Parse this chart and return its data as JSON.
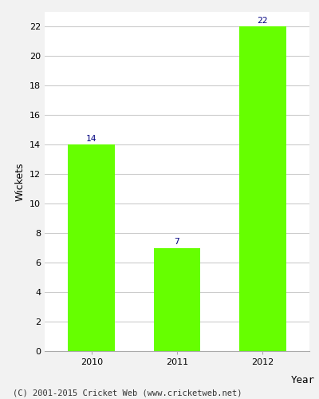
{
  "categories": [
    "2010",
    "2011",
    "2012"
  ],
  "values": [
    14,
    7,
    22
  ],
  "bar_color": "#66ff00",
  "bar_edge_color": "#66ff00",
  "xlabel": "Year",
  "ylabel": "Wickets",
  "ylim": [
    0,
    23
  ],
  "yticks": [
    0,
    2,
    4,
    6,
    8,
    10,
    12,
    14,
    16,
    18,
    20,
    22
  ],
  "label_color": "#000080",
  "label_fontsize": 8,
  "axis_label_fontsize": 9,
  "tick_fontsize": 8,
  "footer_text": "(C) 2001-2015 Cricket Web (www.cricketweb.net)",
  "footer_fontsize": 7.5,
  "background_color": "#f2f2f2",
  "plot_background_color": "#ffffff",
  "grid_color": "#cccccc",
  "bar_width": 0.55
}
